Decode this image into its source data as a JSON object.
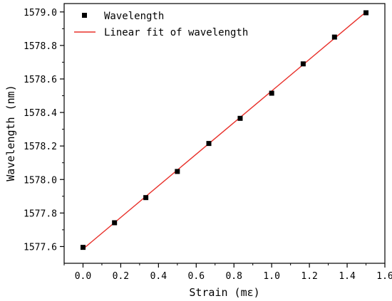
{
  "chart_data": {
    "type": "scatter",
    "title": "",
    "xlabel": "Strain (mε)",
    "ylabel": "Wavelength (nm)",
    "xlim": [
      -0.1,
      1.6
    ],
    "ylim": [
      1577.5,
      1579.05
    ],
    "x_ticks": [
      0.0,
      0.2,
      0.4,
      0.6,
      0.8,
      1.0,
      1.2,
      1.4,
      1.6
    ],
    "x_tick_labels": [
      "0.0",
      "0.2",
      "0.4",
      "0.6",
      "0.8",
      "1.0",
      "1.2",
      "1.4",
      "1.6"
    ],
    "y_ticks": [
      1577.6,
      1577.8,
      1578.0,
      1578.2,
      1578.4,
      1578.6,
      1578.8,
      1579.0
    ],
    "y_tick_labels": [
      "1577.6",
      "1577.8",
      "1578.0",
      "1578.2",
      "1578.4",
      "1578.6",
      "1578.8",
      "1579.0"
    ],
    "grid": false,
    "legend_position": "top-left",
    "series": [
      {
        "name": "Wavelength",
        "kind": "scatter",
        "marker": "square",
        "color": "#000000",
        "x": [
          0.0,
          0.167,
          0.333,
          0.5,
          0.667,
          0.833,
          1.0,
          1.167,
          1.333,
          1.5
        ],
        "y": [
          1577.595,
          1577.742,
          1577.892,
          1578.048,
          1578.215,
          1578.365,
          1578.515,
          1578.69,
          1578.85,
          1578.995
        ]
      },
      {
        "name": "Linear fit of wavelength",
        "kind": "line",
        "color": "#e8302a",
        "x": [
          0.0,
          1.5
        ],
        "y": [
          1577.585,
          1579.0
        ]
      }
    ]
  }
}
